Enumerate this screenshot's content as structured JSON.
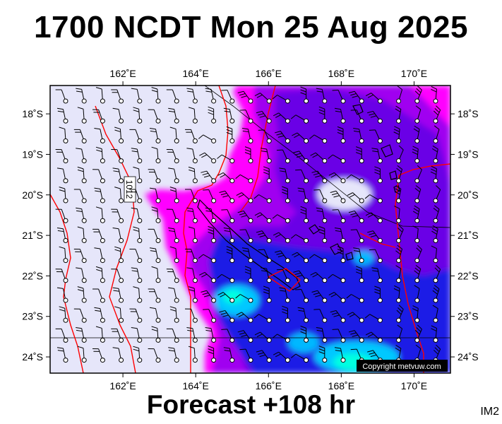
{
  "title": "1700 NCDT Mon 25 Aug 2025",
  "footer": "Forecast +108 hr",
  "corner_label": "IM2",
  "copyright": "Copyright metvuw.com",
  "isobar_label": "1012",
  "map": {
    "lon_ticks": [
      "162˚E",
      "164˚E",
      "166˚E",
      "168˚E",
      "170˚E"
    ],
    "lat_ticks": [
      "18˚S",
      "19˚S",
      "20˚S",
      "21˚S",
      "22˚S",
      "23˚S",
      "24˚S"
    ],
    "lon_range": [
      160.0,
      171.0
    ],
    "lat_range": [
      -17.3,
      -24.4
    ],
    "colors": {
      "calm": "#e6e6fa",
      "magenta": "#ff00ff",
      "violet": "#a000f0",
      "purple": "#6a00e6",
      "blue": "#1e1ee6",
      "cyan": "#00e6ff",
      "isobar": "#ff0000",
      "coast": "#000000"
    }
  }
}
